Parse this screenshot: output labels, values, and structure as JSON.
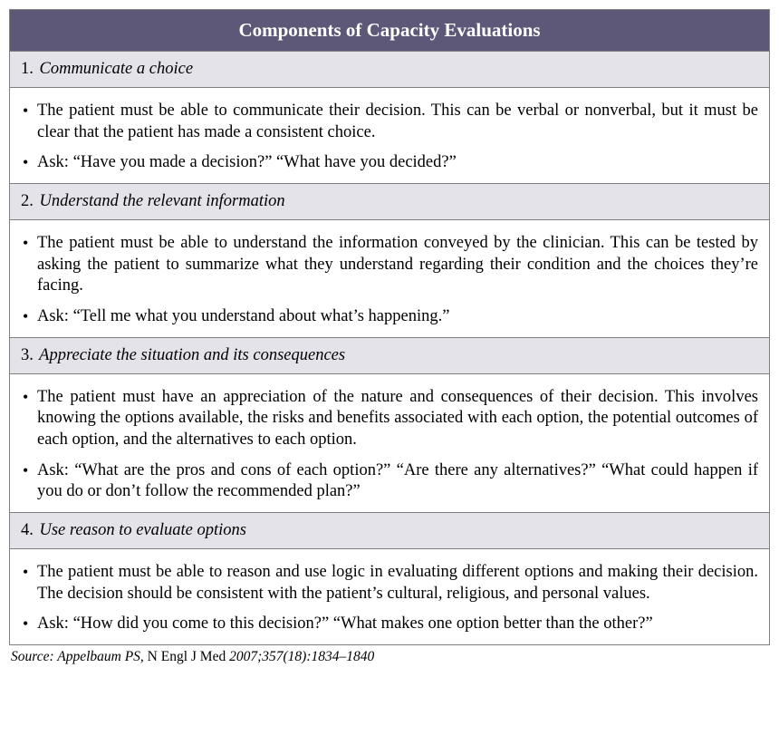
{
  "title": "Components of Capacity Evaluations",
  "colors": {
    "header_bg": "#5d5877",
    "header_text": "#ffffff",
    "section_bg": "#e4e3ea",
    "border": "#808080",
    "body_bg": "#ffffff"
  },
  "typography": {
    "title_fontsize": 21,
    "section_fontsize": 18.5,
    "body_fontsize": 18.5,
    "source_fontsize": 15.5,
    "font_family": "Georgia, serif"
  },
  "sections": [
    {
      "num": "1.",
      "heading": "Communicate a choice",
      "bullets": [
        "The patient must be able to communicate their decision. This can be verbal or nonverbal, but it must be clear that the patient has made a consistent choice.",
        "Ask: “Have you made a decision?” “What have you decided?”"
      ]
    },
    {
      "num": "2.",
      "heading": "Understand the relevant information",
      "bullets": [
        "The patient must be able to understand the information conveyed by the clinician. This can be tested by asking the patient to summarize what they understand regarding their condition and the choices they’re facing.",
        "Ask: “Tell me what you understand about what’s happening.”"
      ]
    },
    {
      "num": "3.",
      "heading": "Appreciate the situation and its consequences",
      "bullets": [
        "The patient must have an appreciation of the nature and consequences of their decision. This involves knowing the options available, the risks and benefits associated with each option, the potential outcomes of each option, and the alternatives to each option.",
        "Ask: “What are the pros and cons of each option?” “Are there any alternatives?” “What could happen if you do or don’t follow the recommended plan?”"
      ]
    },
    {
      "num": "4.",
      "heading": "Use reason to evaluate options",
      "bullets": [
        "The patient must be able to reason and use logic in evaluating different options and making their decision. The decision should be consistent with the patient’s cultural, religious, and personal values.",
        "Ask: “How did you come to this decision?” “What makes one option better than the other?”"
      ]
    }
  ],
  "source": {
    "label": "Source: Appelbaum PS,",
    "journal": " N Engl J Med ",
    "citation": "2007;357(18):1834–1840"
  }
}
